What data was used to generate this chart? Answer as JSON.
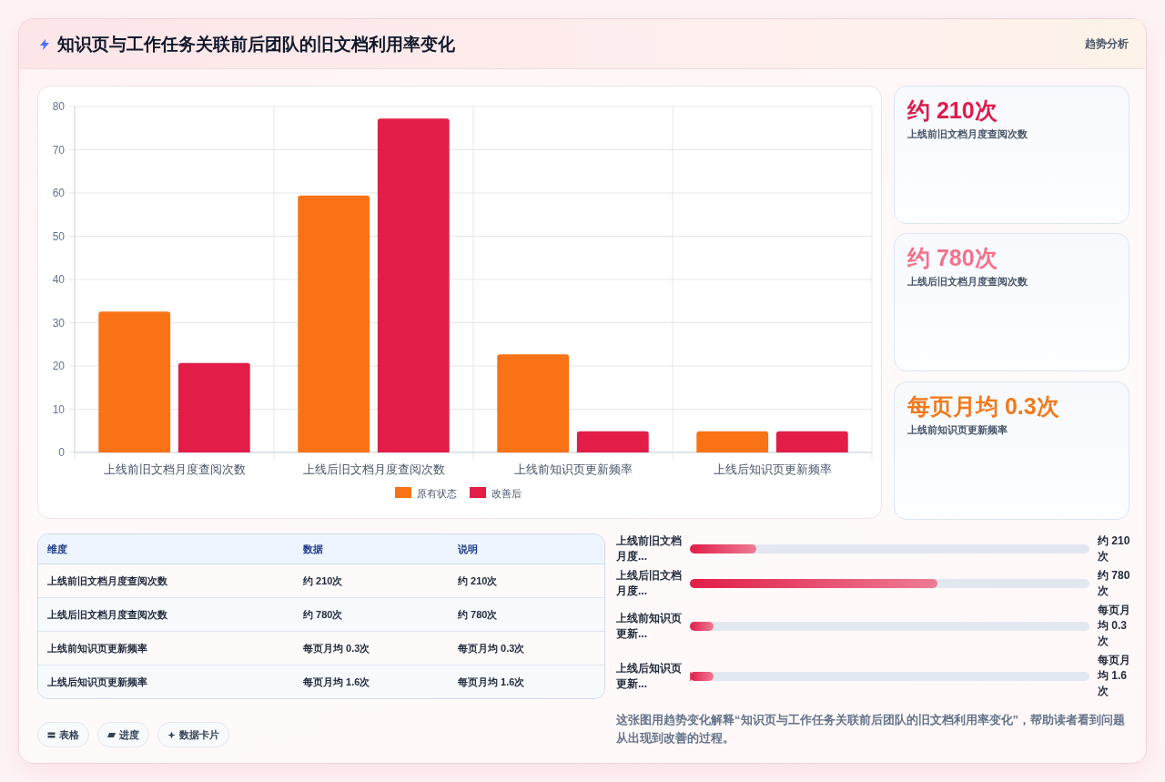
{
  "chart_data": [
    {
      "type": "bar",
      "title": "知识页与工作任务关联前后团队的旧文档利用率变化",
      "annotations": [
        "趋势分析",
        "这张图用趋势变化解释“知识页与工作任务关联前后团队的旧文档利用率变化”，帮助读者看到问题从出现到改善的过程。"
      ],
      "categories": [
        "上线前旧文档月度查阅次数",
        "上线后旧文档月度查阅次数",
        "上线前知识页更新频率",
        "上线后知识页更新频率"
      ],
      "series": [
        {
          "name": "原有状态",
          "color": "#f97316",
          "values": [
            32.6,
            59.4,
            22.7,
            4.9
          ]
        },
        {
          "name": "改善后",
          "color": "#e11d48",
          "values": [
            20.7,
            77.2,
            4.9,
            4.9
          ]
        }
      ],
      "ylim": [
        0,
        80
      ],
      "yticks": [
        0,
        10,
        20,
        30,
        40,
        50,
        60,
        70,
        80
      ],
      "grid": true,
      "legend": "bottom"
    },
    {
      "type": "other",
      "annotations": [
        "约 210次",
        "上线前旧文档月度查阅次数",
        "约 780次",
        "上线后旧文档月度查阅次数",
        "每页月均 0.3次",
        "上线前知识页更新频率"
      ]
    },
    {
      "type": "other",
      "annotations": [
        "维度",
        "数据",
        "说明",
        "上线前旧文档月度查阅次数",
        "约 210次",
        "约 210次",
        "上线后旧文档月度查阅次数",
        "约 780次",
        "约 780次",
        "上线前知识页更新频率",
        "每页月均 0.3次",
        "每页月均 0.3次",
        "上线后知识页更新频率",
        "每页月均 1.6次",
        "每页月均 1.6次"
      ]
    },
    {
      "type": "bar",
      "orientation": "horizontal",
      "categories": [
        "上线前旧文档月度...",
        "上线后旧文档月度...",
        "上线前知识页更新...",
        "上线后知识页更新..."
      ],
      "values": [
        210,
        780,
        0.3,
        1.6
      ],
      "color": "#e11d48",
      "value_labels": [
        "约 210次",
        "约 780次",
        "每页月均 0.3次",
        "每页月均 1.6次"
      ]
    },
    {
      "type": "other",
      "annotations": [
        "表格",
        "进度",
        "数据卡片"
      ]
    }
  ]
}
